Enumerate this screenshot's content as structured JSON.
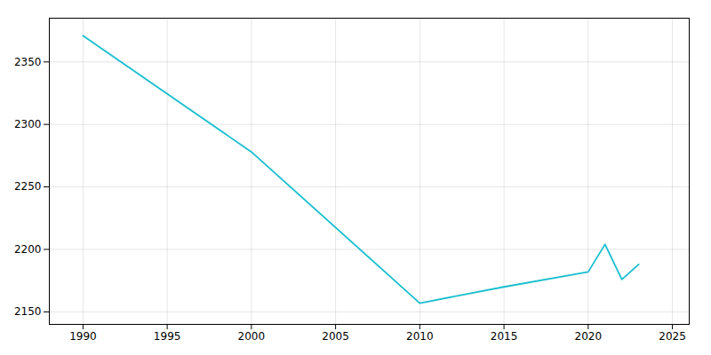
{
  "chart_data": {
    "type": "line",
    "x": [
      1990,
      2000,
      2010,
      2015,
      2020,
      2021,
      2022,
      2023
    ],
    "values": [
      2371,
      2278,
      2157,
      2170,
      2182,
      2204,
      2176,
      2188
    ],
    "color": "#17becf",
    "xlim": [
      1988,
      2026
    ],
    "ylim": [
      2140,
      2385
    ],
    "xticks": [
      1990,
      1995,
      2000,
      2005,
      2010,
      2015,
      2020,
      2025
    ],
    "yticks": [
      2150,
      2200,
      2250,
      2300,
      2350
    ],
    "grid": true
  }
}
